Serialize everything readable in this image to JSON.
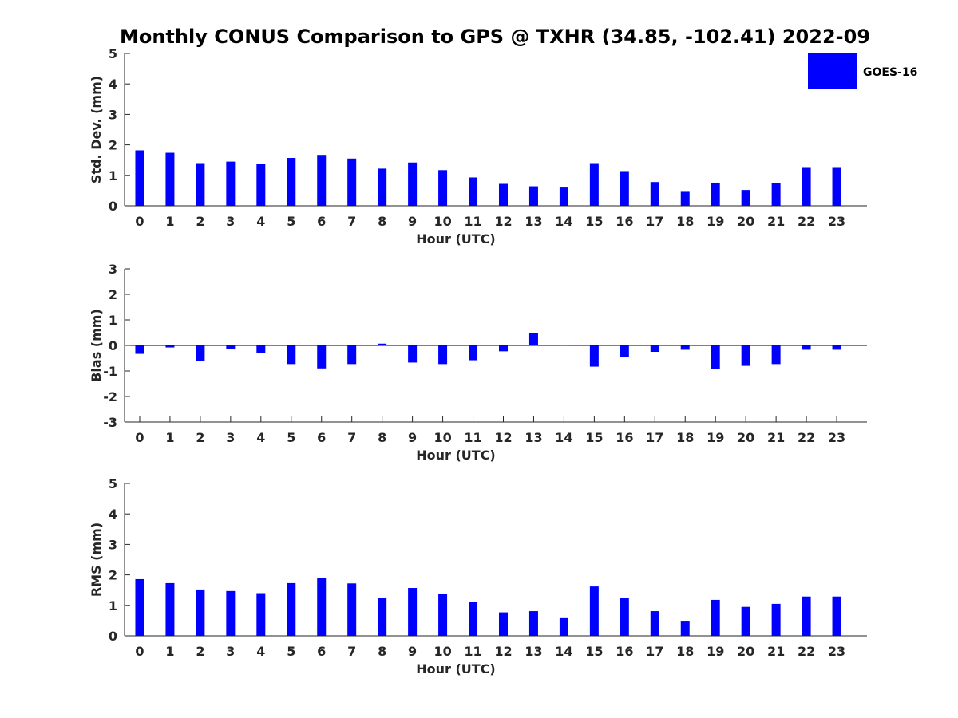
{
  "title": "Monthly CONUS Comparison to GPS @ TXHR (34.85, -102.41) 2022-09",
  "legend": {
    "label": "GOES-16",
    "color": "#0000ff",
    "placement": "top-right"
  },
  "chart_data": [
    {
      "type": "bar",
      "title": "Monthly CONUS Comparison to GPS @ TXHR (34.85, -102.41) 2022-09",
      "xlabel": "Hour (UTC)",
      "ylabel": "Std. Dev. (mm)",
      "categories": [
        "0",
        "1",
        "2",
        "3",
        "4",
        "5",
        "6",
        "7",
        "8",
        "9",
        "10",
        "11",
        "12",
        "13",
        "14",
        "15",
        "16",
        "17",
        "18",
        "19",
        "20",
        "21",
        "22",
        "23"
      ],
      "series": [
        {
          "name": "GOES-16",
          "color": "#0000ff",
          "values": [
            1.82,
            1.74,
            1.4,
            1.45,
            1.37,
            1.57,
            1.67,
            1.55,
            1.22,
            1.42,
            1.17,
            0.93,
            0.72,
            0.64,
            0.6,
            1.4,
            1.14,
            0.78,
            0.46,
            0.76,
            0.52,
            0.74,
            1.27,
            1.27
          ]
        }
      ],
      "ylim": [
        0,
        5
      ],
      "yticks": [
        "0",
        "1",
        "2",
        "3",
        "4",
        "5"
      ],
      "grid": false,
      "legend": "top-right"
    },
    {
      "type": "bar",
      "xlabel": "Hour (UTC)",
      "ylabel": "Bias (mm)",
      "categories": [
        "0",
        "1",
        "2",
        "3",
        "4",
        "5",
        "6",
        "7",
        "8",
        "9",
        "10",
        "11",
        "12",
        "13",
        "14",
        "15",
        "16",
        "17",
        "18",
        "19",
        "20",
        "21",
        "22",
        "23"
      ],
      "series": [
        {
          "name": "GOES-16",
          "color": "#0000ff",
          "values": [
            -0.33,
            -0.08,
            -0.61,
            -0.15,
            -0.3,
            -0.73,
            -0.9,
            -0.73,
            0.07,
            -0.67,
            -0.73,
            -0.58,
            -0.23,
            0.47,
            0.02,
            -0.83,
            -0.47,
            -0.25,
            -0.17,
            -0.92,
            -0.8,
            -0.73,
            -0.17,
            -0.17
          ]
        }
      ],
      "ylim": [
        -3,
        3
      ],
      "yticks": [
        "-3",
        "-2",
        "-1",
        "0",
        "1",
        "2",
        "3"
      ],
      "grid": false
    },
    {
      "type": "bar",
      "xlabel": "Hour (UTC)",
      "ylabel": "RMS (mm)",
      "categories": [
        "0",
        "1",
        "2",
        "3",
        "4",
        "5",
        "6",
        "7",
        "8",
        "9",
        "10",
        "11",
        "12",
        "13",
        "14",
        "15",
        "16",
        "17",
        "18",
        "19",
        "20",
        "21",
        "22",
        "23"
      ],
      "series": [
        {
          "name": "GOES-16",
          "color": "#0000ff",
          "values": [
            1.86,
            1.73,
            1.52,
            1.47,
            1.4,
            1.73,
            1.91,
            1.72,
            1.23,
            1.57,
            1.38,
            1.1,
            0.77,
            0.81,
            0.58,
            1.62,
            1.23,
            0.81,
            0.47,
            1.18,
            0.95,
            1.05,
            1.29,
            1.29
          ]
        }
      ],
      "ylim": [
        0,
        5
      ],
      "yticks": [
        "0",
        "1",
        "2",
        "3",
        "4",
        "5"
      ],
      "grid": false
    }
  ]
}
